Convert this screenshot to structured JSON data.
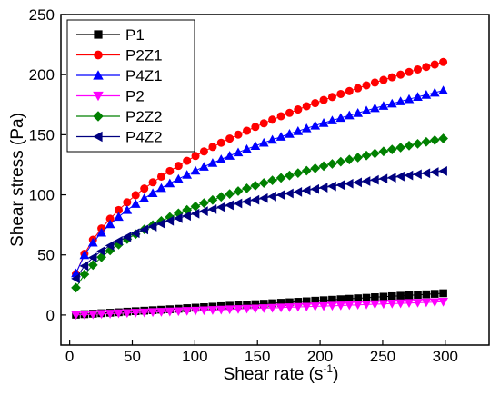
{
  "chart_data": {
    "type": "scatter",
    "xlabel": "Shear rate (s",
    "xlabel_sup": "-1",
    "xlabel_close": ")",
    "ylabel": "Shear stress (Pa)",
    "xlim": [
      -7,
      335
    ],
    "ylim": [
      -25,
      250
    ],
    "xticks": [
      0,
      50,
      100,
      150,
      200,
      250,
      300
    ],
    "yticks": [
      0,
      50,
      100,
      150,
      200,
      250
    ],
    "grid": false,
    "legend_position": "top-left",
    "x": [
      5,
      11.8,
      18.6,
      25.4,
      32.3,
      39.1,
      45.9,
      52.7,
      59.6,
      66.4,
      73.2,
      80,
      86.9,
      93.7,
      100.5,
      107.3,
      114.2,
      121,
      127.8,
      134.6,
      141.5,
      148.3,
      155.1,
      161.9,
      168.8,
      175.6,
      182.4,
      189.2,
      196.1,
      202.9,
      209.7,
      216.5,
      223.4,
      230.2,
      237,
      243.8,
      250.7,
      257.5,
      264.3,
      271.1,
      278,
      284.8,
      291.6,
      298.4
    ],
    "series": [
      {
        "name": "P1",
        "color": "#000000",
        "marker": "square",
        "values": [
          0.3,
          0.7,
          1.1,
          1.5,
          1.9,
          2.3,
          2.8,
          3.2,
          3.6,
          4.0,
          4.4,
          4.8,
          5.2,
          5.7,
          6.1,
          6.5,
          6.9,
          7.3,
          7.7,
          8.1,
          8.5,
          9.0,
          9.4,
          9.8,
          10.2,
          10.6,
          11.0,
          11.4,
          11.9,
          12.3,
          12.7,
          13.1,
          13.5,
          13.9,
          14.3,
          14.8,
          15.2,
          15.6,
          16.0,
          16.4,
          16.8,
          17.2,
          17.6,
          18.1
        ]
      },
      {
        "name": "P2Z1",
        "color": "#ff0000",
        "marker": "circle",
        "values": [
          34.2,
          50.9,
          62.6,
          72.0,
          80.1,
          87.3,
          93.8,
          99.7,
          105.2,
          110.4,
          115.2,
          119.8,
          124.1,
          128.3,
          132.3,
          136.1,
          139.8,
          143.3,
          146.8,
          150.1,
          153.3,
          156.5,
          159.5,
          162.5,
          165.4,
          168.2,
          171.0,
          173.7,
          176.3,
          178.9,
          181.4,
          183.9,
          186.3,
          188.7,
          191.1,
          193.4,
          195.6,
          197.8,
          200.0,
          202.2,
          204.3,
          206.4,
          208.4,
          210.5
        ]
      },
      {
        "name": "P4Z1",
        "color": "#0000ff",
        "marker": "triangle-up",
        "values": [
          34.7,
          49.8,
          60.2,
          68.5,
          75.5,
          81.7,
          87.3,
          92.4,
          97.1,
          101.4,
          105.6,
          109.5,
          113.2,
          116.7,
          120.1,
          123.4,
          126.5,
          129.5,
          132.5,
          135.3,
          138.0,
          140.7,
          143.3,
          145.8,
          148.3,
          150.7,
          153.0,
          155.3,
          157.6,
          159.8,
          161.9,
          164.0,
          166.1,
          168.1,
          170.1,
          172.1,
          174.0,
          175.9,
          177.8,
          179.6,
          181.5,
          183.2,
          185.0,
          186.8
        ]
      },
      {
        "name": "P2",
        "color": "#ff00ff",
        "marker": "triangle-down",
        "values": [
          0.1,
          0.3,
          0.6,
          0.9,
          1.1,
          1.4,
          1.6,
          1.9,
          2.1,
          2.4,
          2.6,
          2.9,
          3.1,
          3.4,
          3.6,
          3.9,
          4.1,
          4.4,
          4.7,
          4.9,
          5.2,
          5.4,
          5.7,
          5.9,
          6.2,
          6.4,
          6.7,
          6.9,
          7.2,
          7.4,
          7.7,
          7.9,
          8.2,
          8.5,
          8.7,
          9.0,
          9.2,
          9.5,
          9.7,
          10.0,
          10.2,
          10.5,
          10.7,
          11.0
        ]
      },
      {
        "name": "P2Z2",
        "color": "#008000",
        "marker": "diamond",
        "values": [
          22.7,
          33.8,
          41.6,
          48.1,
          53.7,
          58.6,
          63.1,
          67.3,
          71.2,
          74.8,
          78.2,
          81.5,
          84.6,
          87.5,
          90.4,
          93.1,
          95.7,
          98.3,
          100.7,
          103.1,
          105.4,
          107.7,
          109.9,
          112.0,
          114.1,
          116.1,
          118.1,
          120.1,
          122.0,
          123.9,
          125.7,
          127.5,
          129.3,
          131.0,
          132.7,
          134.4,
          136.1,
          137.7,
          139.3,
          140.9,
          142.4,
          144.0,
          145.5,
          146.9
        ]
      },
      {
        "name": "P4Z2",
        "color": "#000080",
        "marker": "triangle-left",
        "values": [
          30.2,
          40.8,
          47.8,
          53.2,
          57.7,
          61.6,
          65.0,
          68.1,
          71.0,
          73.6,
          76.0,
          78.3,
          80.5,
          82.5,
          84.4,
          86.3,
          88.0,
          89.7,
          91.3,
          92.9,
          94.4,
          95.8,
          97.2,
          98.6,
          99.9,
          101.2,
          102.4,
          103.6,
          104.8,
          106.0,
          107.1,
          108.2,
          109.3,
          110.3,
          111.4,
          112.4,
          113.4,
          114.3,
          115.3,
          116.2,
          117.1,
          118.0,
          118.9,
          119.8
        ]
      }
    ]
  }
}
